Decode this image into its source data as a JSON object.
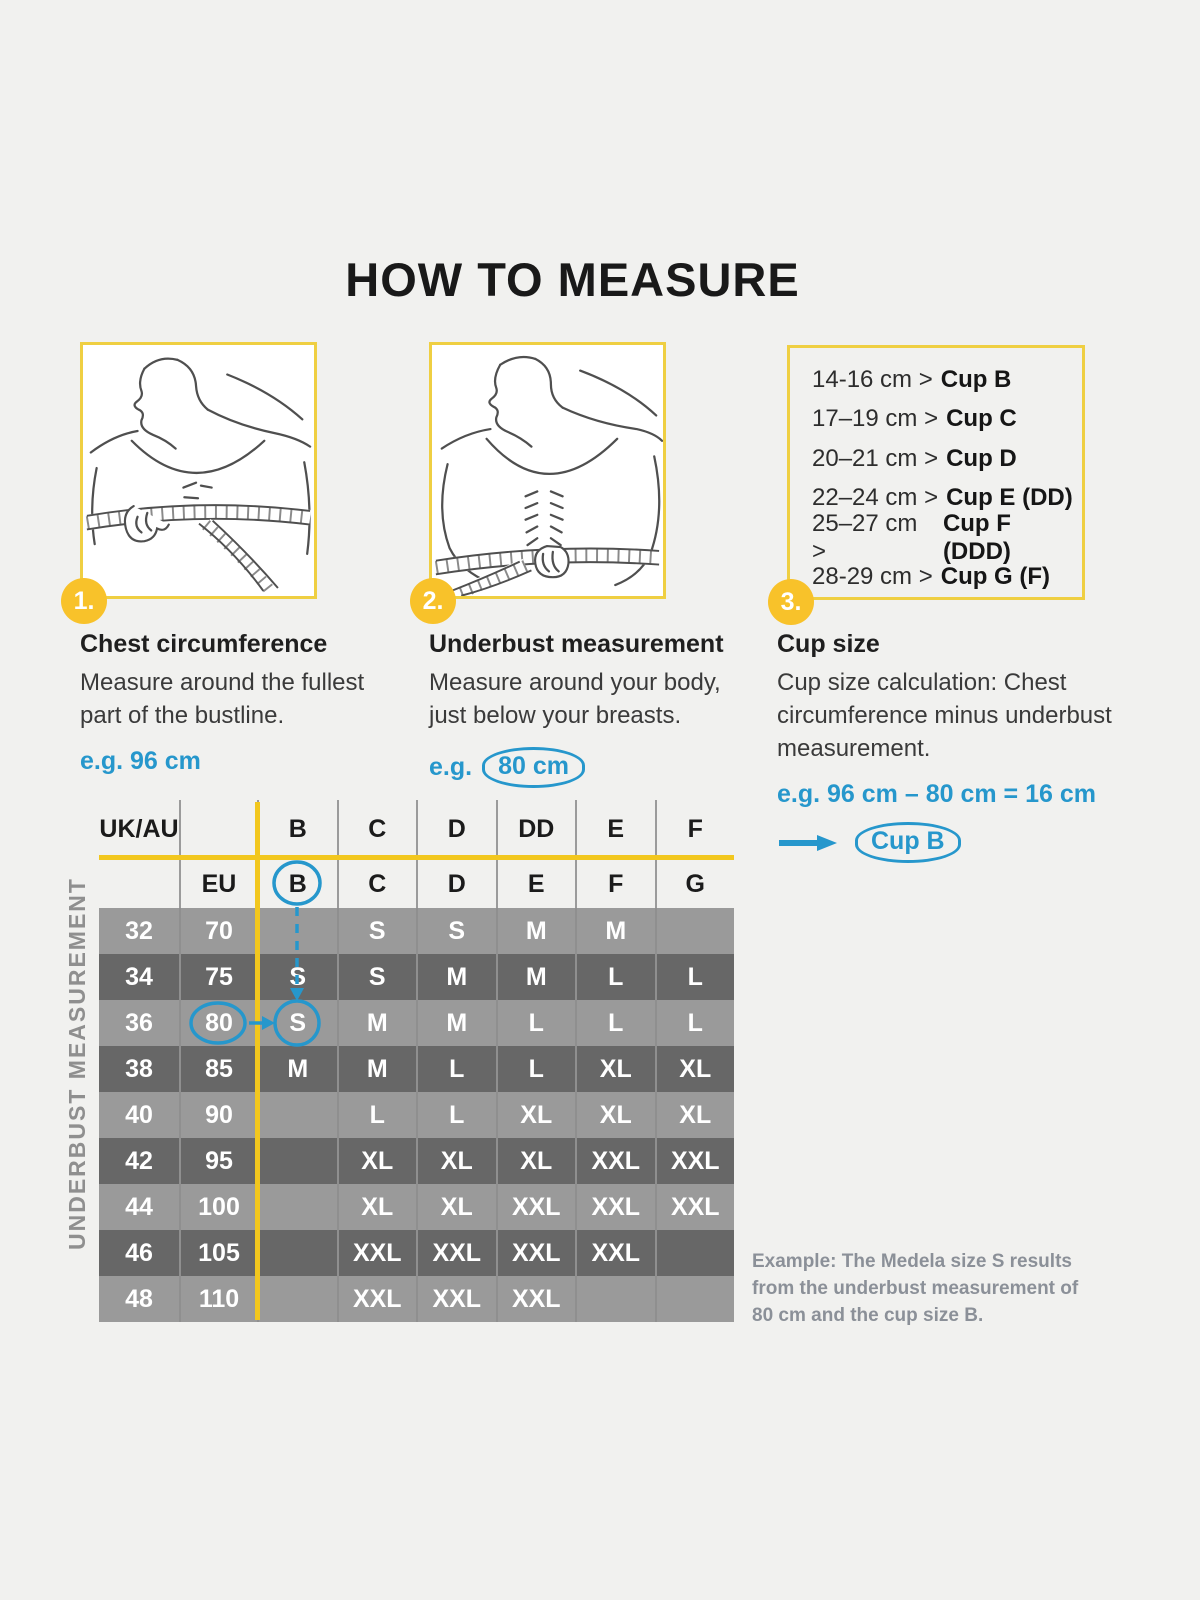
{
  "title": "HOW TO MEASURE",
  "steps": [
    {
      "number": "1.",
      "heading": "Chest circumference",
      "body": "Measure around the fullest part of the bustline.",
      "example": "e.g. 96 cm"
    },
    {
      "number": "2.",
      "heading": "Underbust measurement",
      "body": "Measure around your body, just below your breasts.",
      "example_prefix": "e.g.",
      "example_value": "80 cm"
    },
    {
      "number": "3.",
      "heading": "Cup size",
      "body": "Cup size calculation: Chest circumference minus underbust measurement.",
      "example": "e.g. 96 cm – 80 cm = 16 cm",
      "result": "Cup B"
    }
  ],
  "cup_reference": [
    {
      "range": "14-16 cm >",
      "cup": "Cup B"
    },
    {
      "range": "17–19 cm >",
      "cup": "Cup C"
    },
    {
      "range": "20–21 cm >",
      "cup": "Cup D"
    },
    {
      "range": "22–24 cm >",
      "cup": "Cup E (DD)"
    },
    {
      "range": "25–27 cm >",
      "cup": "Cup F (DDD)"
    },
    {
      "range": "28-29 cm >",
      "cup": "Cup G (F)"
    }
  ],
  "size_chart": {
    "axis_label": "UNDERBUST MEASUREMENT",
    "header_row_1": [
      "UK/AU",
      "",
      "B",
      "C",
      "D",
      "DD",
      "E",
      "F"
    ],
    "header_row_2": [
      "",
      "EU",
      "B",
      "C",
      "D",
      "E",
      "F",
      "G"
    ],
    "rows": [
      {
        "uk": "32",
        "eu": "70",
        "sizes": [
          "",
          "S",
          "S",
          "M",
          "M",
          ""
        ]
      },
      {
        "uk": "34",
        "eu": "75",
        "sizes": [
          "S",
          "S",
          "M",
          "M",
          "L",
          "L"
        ]
      },
      {
        "uk": "36",
        "eu": "80",
        "sizes": [
          "S",
          "M",
          "M",
          "L",
          "L",
          "L"
        ]
      },
      {
        "uk": "38",
        "eu": "85",
        "sizes": [
          "M",
          "M",
          "L",
          "L",
          "XL",
          "XL"
        ]
      },
      {
        "uk": "40",
        "eu": "90",
        "sizes": [
          "",
          "L",
          "L",
          "XL",
          "XL",
          "XL"
        ]
      },
      {
        "uk": "42",
        "eu": "95",
        "sizes": [
          "",
          "XL",
          "XL",
          "XL",
          "XXL",
          "XXL"
        ]
      },
      {
        "uk": "44",
        "eu": "100",
        "sizes": [
          "",
          "XL",
          "XL",
          "XXL",
          "XXL",
          "XXL"
        ]
      },
      {
        "uk": "46",
        "eu": "105",
        "sizes": [
          "",
          "XXL",
          "XXL",
          "XXL",
          "XXL",
          ""
        ]
      },
      {
        "uk": "48",
        "eu": "110",
        "sizes": [
          "",
          "XXL",
          "XXL",
          "XXL",
          "",
          ""
        ]
      }
    ],
    "highlight": {
      "eu_header_cup": "B",
      "eu_row": "80",
      "resulting_size": "S"
    }
  },
  "example_note": "Example: The Medela size S results from the underbust measurement of 80 cm and the cup size B.",
  "colors": {
    "background": "#f1f1ef",
    "yellow_line": "#f2c71e",
    "yellow_border": "#efcf42",
    "circle_yellow": "#f8c22a",
    "accent_blue": "#2697cc",
    "row_light": "#9a9a9a",
    "row_dark": "#676767",
    "note_gray": "#8b9098"
  }
}
